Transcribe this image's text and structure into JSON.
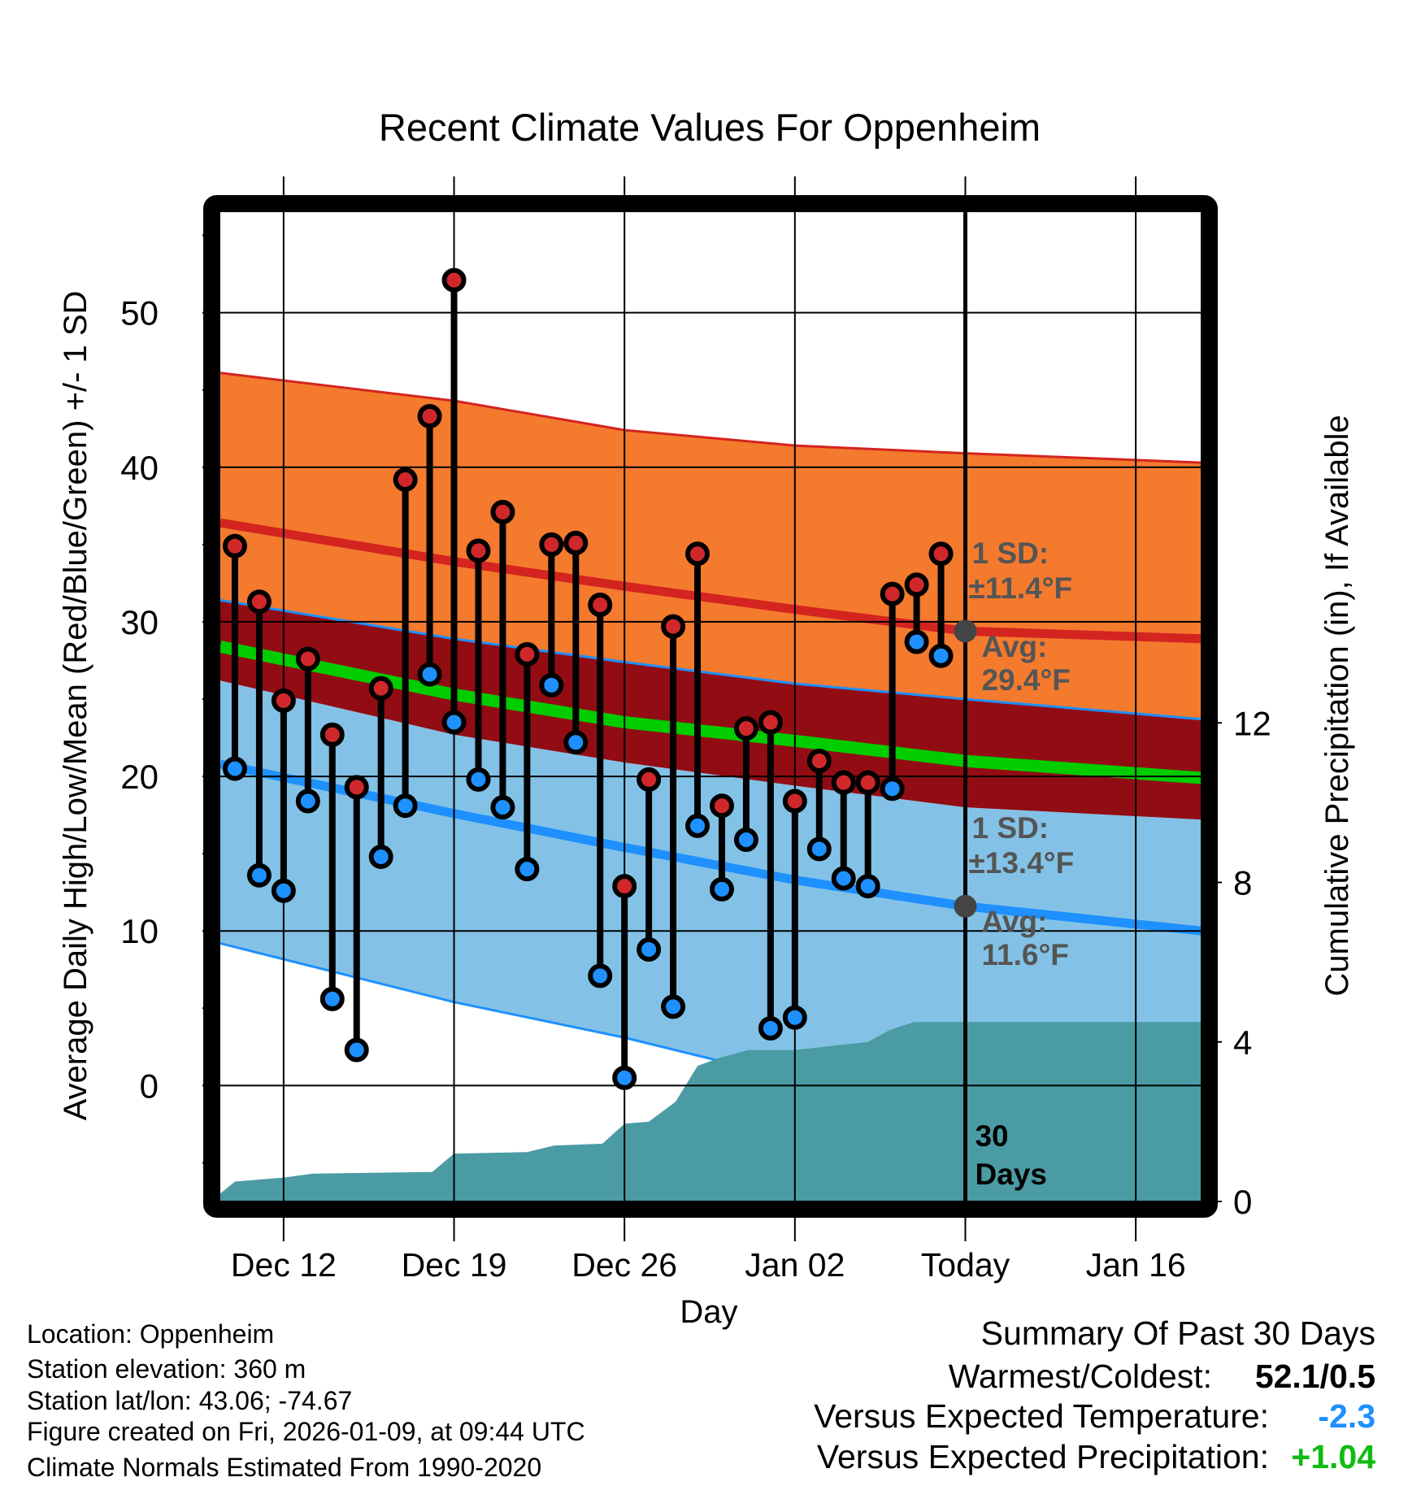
{
  "chart_data": {
    "type": "line",
    "title": "Recent Climate Values For Oppenheim",
    "xlabel": "Day",
    "ylabel": "Average Daily High/Low/Mean (Red/Blue/Green) +/- 1 SD",
    "y2label": "Cumulative Precipitation (in), If Available",
    "x_units": "days relative to today",
    "xlim": [
      -30.6,
      9.7
    ],
    "ylim": [
      -7.5,
      56.5
    ],
    "y2lim": [
      0,
      24.8
    ],
    "x_ticks": [
      {
        "day": -28,
        "label": "Dec 12"
      },
      {
        "day": -21,
        "label": "Dec 19"
      },
      {
        "day": -14,
        "label": "Dec 26"
      },
      {
        "day": -7,
        "label": "Jan 02"
      },
      {
        "day": 0,
        "label": "Today"
      },
      {
        "day": 7,
        "label": "Jan 16"
      }
    ],
    "y_ticks": [
      {
        "value": 0,
        "label": "0"
      },
      {
        "value": 10,
        "label": "10"
      },
      {
        "value": 20,
        "label": "20"
      },
      {
        "value": 30,
        "label": "30"
      },
      {
        "value": 40,
        "label": "40"
      },
      {
        "value": 50,
        "label": "50"
      }
    ],
    "y2_ticks": [
      {
        "value": 0,
        "label": "0"
      },
      {
        "value": 4,
        "label": "4"
      },
      {
        "value": 8,
        "label": "8"
      },
      {
        "value": 12,
        "label": "12"
      }
    ],
    "grid": true,
    "normals": {
      "days": [
        -30.6,
        -21,
        -14,
        -7,
        0,
        9.7
      ],
      "high_plus_sd": [
        46.1,
        44.3,
        42.4,
        41.4,
        40.9,
        40.3
      ],
      "avg_high": [
        36.4,
        33.9,
        32.3,
        30.8,
        29.4,
        28.9
      ],
      "high_minus_sd": [
        31.4,
        28.9,
        27.4,
        26.0,
        25.0,
        23.7
      ],
      "avg_mean": [
        28.4,
        25.3,
        23.5,
        22.3,
        21.0,
        19.9
      ],
      "low_plus_sd": [
        26.2,
        22.7,
        20.9,
        19.4,
        18.0,
        17.2
      ],
      "avg_low": [
        20.8,
        17.6,
        15.4,
        13.3,
        11.6,
        10.0
      ],
      "low_minus_sd": [
        9.2,
        5.4,
        3.1,
        0.4,
        -1.8,
        -3.2
      ]
    },
    "observations": {
      "days": [
        -30,
        -29,
        -28,
        -27,
        -26,
        -25,
        -24,
        -23,
        -22,
        -21,
        -20,
        -19,
        -18,
        -17,
        -16,
        -15,
        -14,
        -13,
        -12,
        -11,
        -10,
        -9,
        -8,
        -7,
        -6,
        -5,
        -4,
        -3,
        -2,
        -1
      ],
      "highs": [
        34.9,
        31.3,
        24.9,
        27.6,
        22.7,
        19.3,
        25.7,
        39.2,
        43.3,
        52.1,
        34.6,
        37.1,
        27.9,
        35.0,
        35.1,
        31.1,
        12.9,
        19.8,
        29.7,
        34.4,
        18.1,
        23.1,
        23.5,
        18.4,
        21.0,
        19.6,
        19.6,
        31.8,
        32.4,
        34.4
      ],
      "lows": [
        20.5,
        13.6,
        12.6,
        18.4,
        5.6,
        2.3,
        14.8,
        18.1,
        26.6,
        23.5,
        19.8,
        18.0,
        14.0,
        25.9,
        22.2,
        7.1,
        0.5,
        8.8,
        5.1,
        16.8,
        12.7,
        15.9,
        3.7,
        4.4,
        15.3,
        13.4,
        12.9,
        19.2,
        28.7,
        27.8
      ]
    },
    "precipitation": {
      "days": [
        -30.6,
        -30,
        -28,
        -26.8,
        -21.9,
        -21,
        -18,
        -16.9,
        -14.9,
        -14,
        -13,
        -11.9,
        -11,
        -10.1,
        -8.9,
        -7,
        -4,
        -3.1,
        -2.1,
        9.7
      ],
      "cumulative_in": [
        0.2,
        0.5,
        0.6,
        0.7,
        0.74,
        1.2,
        1.24,
        1.4,
        1.45,
        1.95,
        2.0,
        2.5,
        3.4,
        3.6,
        3.8,
        3.8,
        4.0,
        4.3,
        4.5,
        4.5
      ]
    },
    "annotations": {
      "high_sd_label": "1 SD:",
      "high_sd_value": "±11.4°F",
      "high_avg_label": "Avg:",
      "high_avg_value": "29.4°F",
      "high_avg_today": 29.4,
      "low_sd_label": "1 SD:",
      "low_sd_value": "±13.4°F",
      "low_avg_label": "Avg:",
      "low_avg_value": "11.6°F",
      "low_avg_today": 11.6,
      "window_count": "30",
      "window_unit": "Days"
    }
  },
  "info": {
    "location": "Location: Oppenheim",
    "elevation": "Station elevation: 360 m",
    "latlon": "Station lat/lon: 43.06; -74.67",
    "created": "Figure created on Fri, 2026-01-09, at 09:44 UTC",
    "normals": "Climate Normals Estimated From 1990-2020"
  },
  "summary": {
    "title": "Summary Of Past 30 Days",
    "warmest_label": "Warmest/Coldest:",
    "warmest_value": "52.1/0.5",
    "temp_label": "Versus Expected Temperature:",
    "temp_value": "-2.3",
    "precip_label": "Versus Expected Precipitation:",
    "precip_value": "+1.04"
  },
  "colors": {
    "orange": "#F47A2E",
    "darkred": "#920C14",
    "red": "#D42420",
    "green": "#00CC00",
    "lightblue": "#83C2E6",
    "blue": "#1E90FF",
    "precip": "#4A9BA4",
    "annot": "#555555",
    "temp_value": "#1E90FF",
    "precip_value": "#11BB11"
  }
}
